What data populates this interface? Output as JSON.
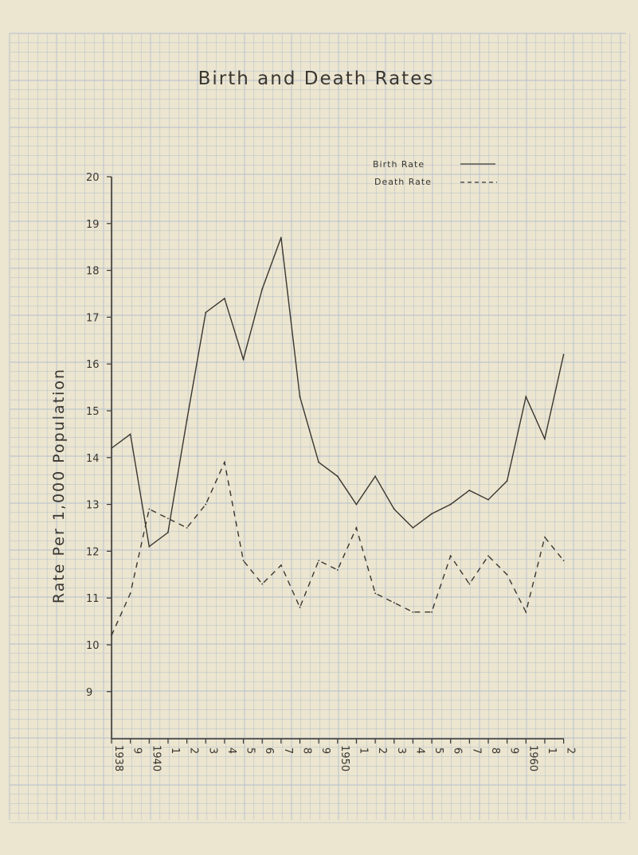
{
  "chart_data": {
    "type": "line",
    "title": "Birth and Death Rates",
    "ylabel": "Rate Per 1,000 Population",
    "xlabel": "",
    "ylim": [
      8,
      20
    ],
    "yticks": [
      9,
      10,
      11,
      12,
      13,
      14,
      15,
      16,
      17,
      18,
      19,
      20
    ],
    "grid": true,
    "legend_position": "top-right",
    "x": [
      1938,
      1939,
      1940,
      1941,
      1942,
      1943,
      1944,
      1945,
      1946,
      1947,
      1948,
      1949,
      1950,
      1951,
      1952,
      1953,
      1954,
      1955,
      1956,
      1957,
      1958,
      1959,
      1960,
      1961,
      1962
    ],
    "xtick_labels": [
      "1938",
      "9",
      "1940",
      "1",
      "2",
      "3",
      "4",
      "5",
      "6",
      "7",
      "8",
      "9",
      "1950",
      "1",
      "2",
      "3",
      "4",
      "5",
      "6",
      "7",
      "8",
      "9",
      "1960",
      "1",
      "2"
    ],
    "series": [
      {
        "name": "Birth Rate",
        "style": "solid",
        "color": "#3a3630",
        "values": [
          14.2,
          14.5,
          12.1,
          12.4,
          14.8,
          17.1,
          17.4,
          16.1,
          17.6,
          18.7,
          15.3,
          13.9,
          13.6,
          13.0,
          13.6,
          12.9,
          12.5,
          12.8,
          13.0,
          13.3,
          13.1,
          13.5,
          15.3,
          14.4,
          16.2
        ]
      },
      {
        "name": "Death Rate",
        "style": "dashed",
        "color": "#3a3630",
        "values": [
          10.2,
          11.1,
          12.9,
          12.7,
          12.5,
          13.0,
          13.9,
          11.8,
          11.3,
          11.7,
          10.8,
          11.8,
          11.6,
          12.5,
          11.1,
          10.9,
          10.7,
          10.7,
          11.9,
          11.3,
          11.9,
          11.5,
          10.7,
          12.3,
          11.8
        ]
      }
    ],
    "colors": {
      "paper": "#ece5cf",
      "grid": "#b3c0cc",
      "ink": "#3a3630"
    }
  }
}
